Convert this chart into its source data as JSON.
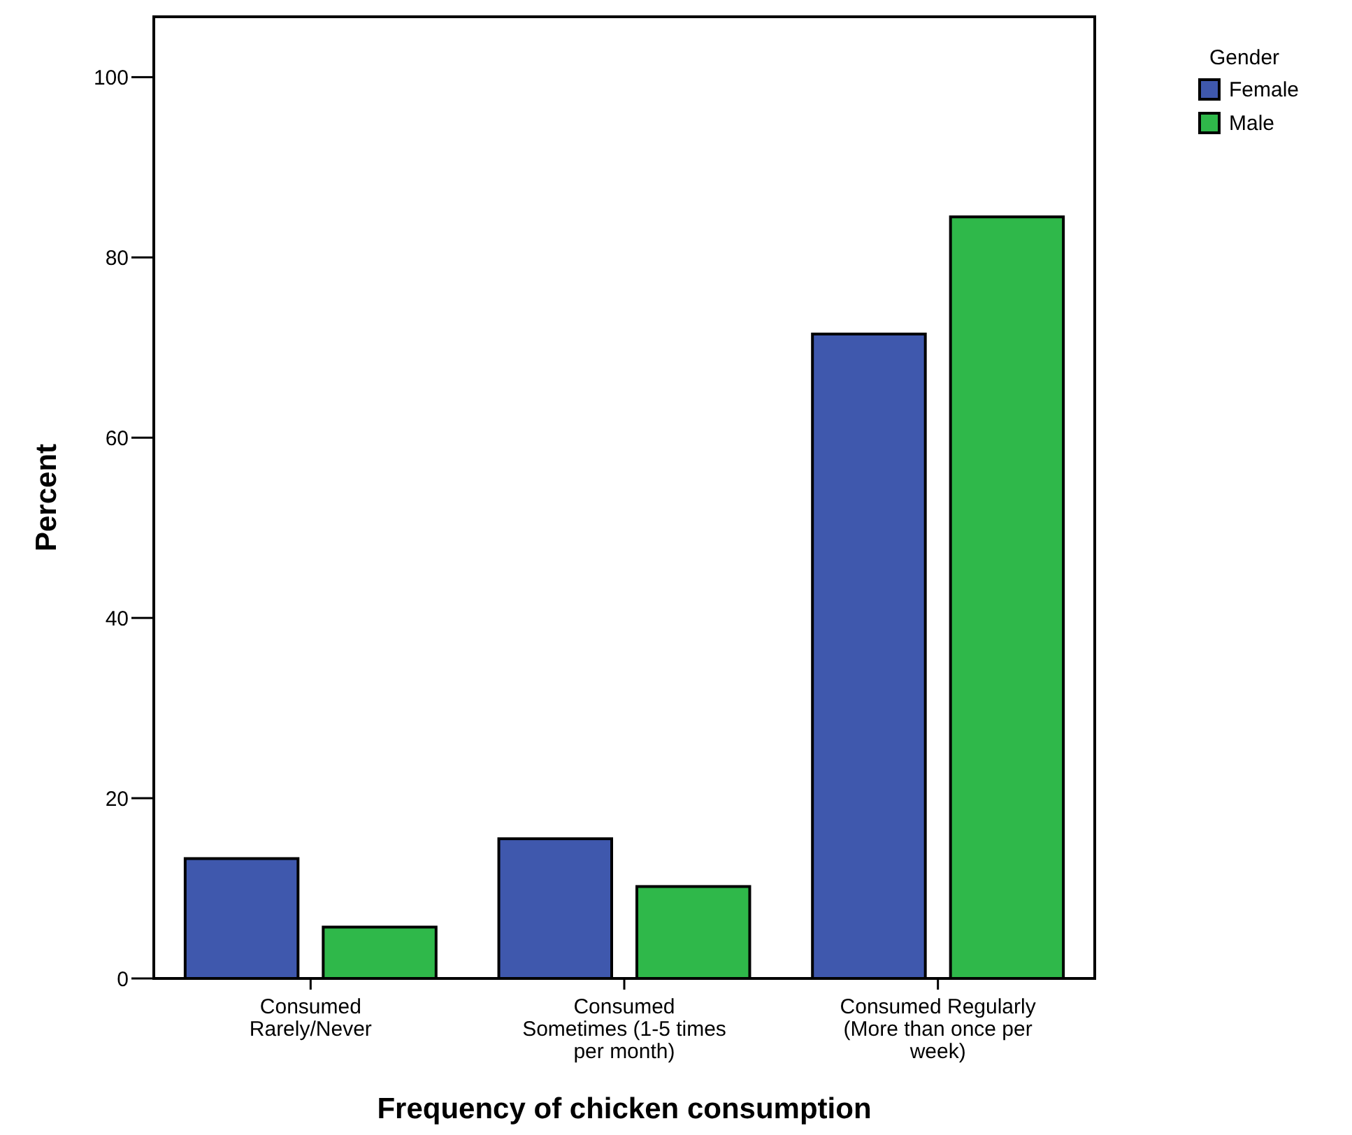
{
  "chart_data": {
    "type": "bar",
    "xlabel": "Frequency of chicken consumption",
    "ylabel": "Percent",
    "legend_title": "Gender",
    "categories": [
      "Consumed\nRarely/Never",
      "Consumed\nSometimes (1-5 times\nper month)",
      "Consumed Regularly\n(More than once per\nweek)"
    ],
    "series": [
      {
        "name": "Female",
        "color": "#3f58ad",
        "values": [
          13.3,
          15.5,
          71.5
        ]
      },
      {
        "name": "Male",
        "color": "#2fb84a",
        "values": [
          5.7,
          10.2,
          84.5
        ]
      }
    ],
    "ylim": [
      0,
      106.7
    ],
    "yticks": [
      0,
      20,
      40,
      60,
      80,
      100
    ],
    "grid": false,
    "legend": "top right"
  }
}
